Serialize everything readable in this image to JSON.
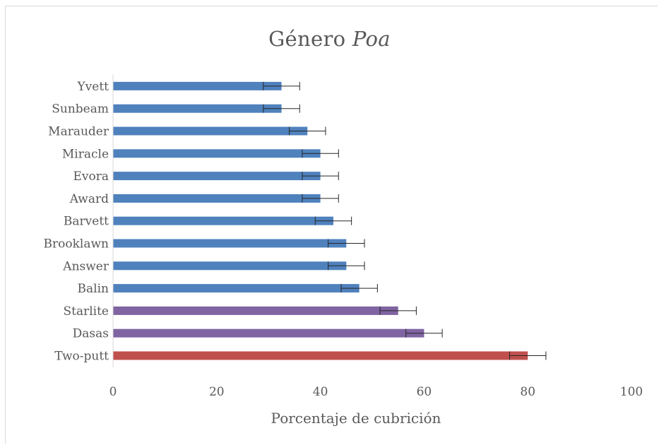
{
  "chart_data": {
    "type": "bar",
    "orientation": "horizontal",
    "title": "Género",
    "title_species": "Poa",
    "xlabel": "Porcentaje  de cubrición",
    "ylabel": "",
    "xlim": [
      0,
      100
    ],
    "xticks": [
      "0",
      "20",
      "40",
      "60",
      "80",
      "100"
    ],
    "grid": false,
    "legend": "none",
    "categories": [
      "Yvett",
      "Sunbeam",
      "Marauder",
      "Miracle",
      "Evora",
      "Award",
      "Barvett",
      "Brooklawn",
      "Answer",
      "Balin",
      "Starlite",
      "Dasas",
      "Two-putt"
    ],
    "values": [
      32.5,
      32.5,
      37.5,
      40,
      40,
      40,
      42.5,
      45,
      45,
      47.5,
      55,
      60,
      80
    ],
    "errors": [
      3.5,
      3.5,
      3.5,
      3.5,
      3.5,
      3.5,
      3.5,
      3.5,
      3.5,
      3.5,
      3.5,
      3.5,
      3.5
    ],
    "colors": [
      "#4f81bd",
      "#4f81bd",
      "#4f81bd",
      "#4f81bd",
      "#4f81bd",
      "#4f81bd",
      "#4f81bd",
      "#4f81bd",
      "#4f81bd",
      "#4f81bd",
      "#8064a2",
      "#8064a2",
      "#c0504d"
    ]
  }
}
